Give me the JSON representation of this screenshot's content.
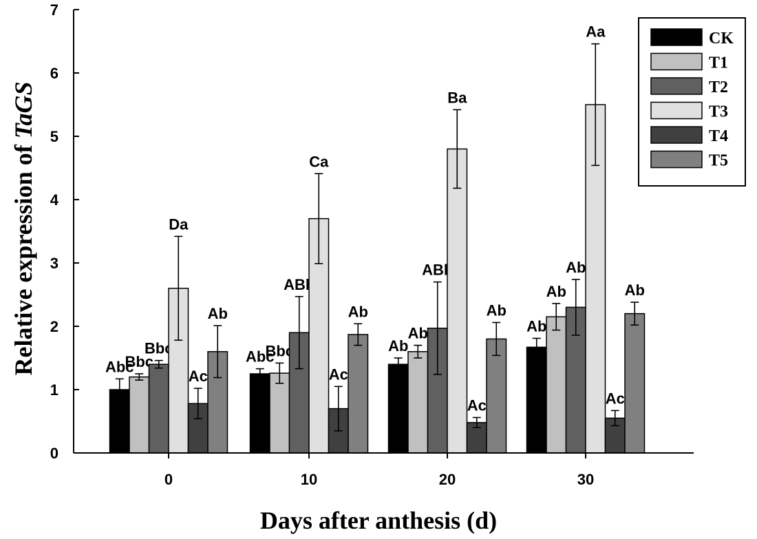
{
  "chart_data": {
    "type": "bar",
    "xlabel": "Days after anthesis (d)",
    "ylabel_prefix": "Relative expression of ",
    "ylabel_gene": "TaGS",
    "categories": [
      "0",
      "10",
      "20",
      "30"
    ],
    "ylim": [
      0,
      7
    ],
    "yticks": [
      "0",
      "1",
      "2",
      "3",
      "4",
      "5",
      "6",
      "7"
    ],
    "legend_position": "top-right",
    "series": [
      {
        "name": "CK",
        "color": "#000000",
        "values": [
          1.0,
          1.25,
          1.4,
          1.67
        ],
        "errors": [
          0.17,
          0.08,
          0.1,
          0.14
        ],
        "labels": [
          "Abc",
          "Abc",
          "Ab",
          "Ab"
        ]
      },
      {
        "name": "T1",
        "color": "#c0c0c0",
        "values": [
          1.2,
          1.26,
          1.6,
          2.15
        ],
        "errors": [
          0.05,
          0.16,
          0.1,
          0.21
        ],
        "labels": [
          "Bbc",
          "Bbc",
          "Ab",
          "Ab"
        ]
      },
      {
        "name": "T2",
        "color": "#606060",
        "values": [
          1.4,
          1.9,
          1.97,
          2.3
        ],
        "errors": [
          0.06,
          0.57,
          0.73,
          0.44
        ],
        "labels": [
          "Bbc",
          "ABb",
          "ABb",
          "Ab"
        ]
      },
      {
        "name": "T3",
        "color": "#e0e0e0",
        "values": [
          2.6,
          3.7,
          4.8,
          5.5
        ],
        "errors": [
          0.82,
          0.71,
          0.62,
          0.96
        ],
        "labels": [
          "Da",
          "Ca",
          "Ba",
          "Aa"
        ]
      },
      {
        "name": "T4",
        "color": "#404040",
        "values": [
          0.78,
          0.7,
          0.48,
          0.55
        ],
        "errors": [
          0.24,
          0.35,
          0.08,
          0.12
        ],
        "labels": [
          "Ac",
          "Ac",
          "Ac",
          "Ac"
        ]
      },
      {
        "name": "T5",
        "color": "#808080",
        "values": [
          1.6,
          1.87,
          1.8,
          2.2
        ],
        "errors": [
          0.41,
          0.17,
          0.26,
          0.18
        ],
        "labels": [
          "Ab",
          "Ab",
          "Ab",
          "Ab"
        ]
      }
    ]
  }
}
